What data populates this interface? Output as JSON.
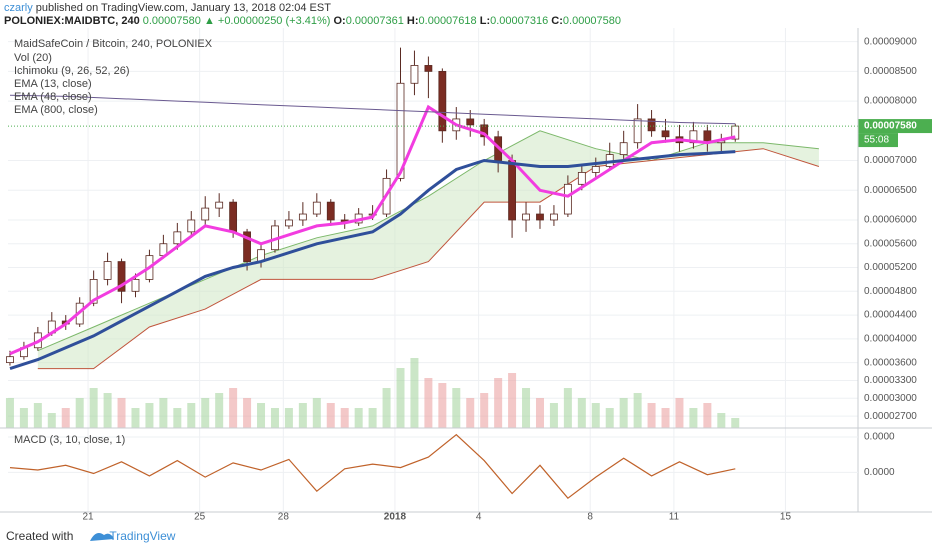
{
  "header": {
    "author": "czarly",
    "published": "published on TradingView.com, January 13, 2018 02:04 EST",
    "symbol": "POLONIEX:MAIDBTC, 240",
    "price": "0.00007580",
    "change": "+0.00000250 (+3.41%)",
    "ohlc": [
      {
        "label": "O:",
        "value": "0.00007361"
      },
      {
        "label": "H:",
        "value": "0.00007618"
      },
      {
        "label": "L:",
        "value": "0.00007316"
      },
      {
        "label": "C:",
        "value": "0.00007580"
      }
    ]
  },
  "footer": {
    "created": "Created with",
    "brand": "TradingView"
  },
  "chart_data": [
    {
      "type": "candlestick",
      "title": "MaidSafeCoin / Bitcoin, 240, POLONIEX",
      "up_color": "#ffffff",
      "down_color": "#7b2c22",
      "outline": "#5a2a22",
      "grid": true,
      "xlim": [
        18.13,
        48.6
      ],
      "ylim": [
        2.5e-05,
        9.23e-05
      ],
      "xticks": [
        21,
        25,
        28,
        {
          "value": 32,
          "label": "2018"
        },
        {
          "value": 35,
          "label": "4"
        },
        {
          "value": 39,
          "label": "8"
        },
        {
          "value": 42,
          "label": "11"
        },
        {
          "value": 46,
          "label": "15"
        }
      ],
      "yticks": [
        {
          "value": 9e-05,
          "label": "0.00009000"
        },
        {
          "value": 8.5e-05,
          "label": "0.00008500"
        },
        {
          "value": 8e-05,
          "label": "0.00008000"
        },
        {
          "value": 7e-05,
          "label": "0.00007000"
        },
        {
          "value": 6.5e-05,
          "label": "0.00006500"
        },
        {
          "value": 6e-05,
          "label": "0.00006000"
        },
        {
          "value": 5.6e-05,
          "label": "0.00005600"
        },
        {
          "value": 5.2e-05,
          "label": "0.00005200"
        },
        {
          "value": 4.8e-05,
          "label": "0.00004800"
        },
        {
          "value": 4.4e-05,
          "label": "0.00004400"
        },
        {
          "value": 4e-05,
          "label": "0.00004000"
        },
        {
          "value": 3.6e-05,
          "label": "0.00003600"
        },
        {
          "value": 3.3e-05,
          "label": "0.00003300"
        },
        {
          "value": 3e-05,
          "label": "0.00003000"
        },
        {
          "value": 2.7e-05,
          "label": "0.00002700"
        }
      ],
      "x": [
        18.2,
        18.7,
        19.2,
        19.7,
        20.2,
        20.7,
        21.2,
        21.7,
        22.2,
        22.7,
        23.2,
        23.7,
        24.2,
        24.7,
        25.2,
        25.7,
        26.2,
        26.7,
        27.2,
        27.7,
        28.2,
        28.7,
        29.2,
        29.7,
        30.2,
        30.7,
        31.2,
        31.7,
        32.2,
        32.7,
        33.2,
        33.7,
        34.2,
        34.7,
        35.2,
        35.7,
        36.2,
        36.7,
        37.2,
        37.7,
        38.2,
        38.7,
        39.2,
        39.7,
        40.2,
        40.7,
        41.2,
        41.7,
        42.2,
        42.7,
        43.2,
        43.7,
        44.2
      ],
      "open": [
        3.6e-05,
        3.7e-05,
        3.85e-05,
        4.1e-05,
        4.3e-05,
        4.25e-05,
        4.6e-05,
        5e-05,
        5.3e-05,
        4.8e-05,
        5e-05,
        5.4e-05,
        5.6e-05,
        5.8e-05,
        6e-05,
        6.2e-05,
        6.3e-05,
        5.8e-05,
        5.3e-05,
        5.5e-05,
        5.9e-05,
        6e-05,
        6.1e-05,
        6.3e-05,
        6e-05,
        5.95e-05,
        6.1e-05,
        6.1e-05,
        6.7e-05,
        8.3e-05,
        8.6e-05,
        8.5e-05,
        7.5e-05,
        7.7e-05,
        7.6e-05,
        7.4e-05,
        7e-05,
        6e-05,
        6.1e-05,
        6e-05,
        6.1e-05,
        6.6e-05,
        6.8e-05,
        6.9e-05,
        7.1e-05,
        7.3e-05,
        7.7e-05,
        7.5e-05,
        7.4e-05,
        7.3e-05,
        7.5e-05,
        7.3e-05,
        7.361e-05
      ],
      "high": [
        3.8e-05,
        3.95e-05,
        4.2e-05,
        4.45e-05,
        4.4e-05,
        4.7e-05,
        5.15e-05,
        5.45e-05,
        5.35e-05,
        5.1e-05,
        5.5e-05,
        5.75e-05,
        5.95e-05,
        6.15e-05,
        6.4e-05,
        6.45e-05,
        6.35e-05,
        5.85e-05,
        5.6e-05,
        6e-05,
        6.15e-05,
        6.3e-05,
        6.45e-05,
        6.35e-05,
        6.1e-05,
        6.2e-05,
        6.25e-05,
        6.85e-05,
        8.9e-05,
        8.85e-05,
        8.75e-05,
        8.55e-05,
        7.9e-05,
        7.85e-05,
        7.7e-05,
        7.5e-05,
        7.1e-05,
        6.3e-05,
        6.25e-05,
        6.25e-05,
        6.75e-05,
        6.95e-05,
        7.05e-05,
        7.3e-05,
        7.5e-05,
        7.95e-05,
        7.85e-05,
        7.7e-05,
        7.6e-05,
        7.65e-05,
        7.6e-05,
        7.45e-05,
        7.618e-05
      ],
      "low": [
        3.55e-05,
        3.65e-05,
        3.8e-05,
        4.05e-05,
        4.15e-05,
        4.2e-05,
        4.55e-05,
        4.9e-05,
        4.6e-05,
        4.7e-05,
        4.95e-05,
        5.35e-05,
        5.5e-05,
        5.7e-05,
        5.9e-05,
        6.05e-05,
        5.7e-05,
        5.15e-05,
        5.2e-05,
        5.45e-05,
        5.85e-05,
        5.9e-05,
        6.05e-05,
        5.9e-05,
        5.85e-05,
        5.9e-05,
        6e-05,
        6.05e-05,
        6.65e-05,
        8.1e-05,
        8.05e-05,
        7.3e-05,
        7.35e-05,
        7.4e-05,
        7.25e-05,
        6.8e-05,
        5.7e-05,
        5.8e-05,
        5.85e-05,
        5.9e-05,
        6.05e-05,
        6.5e-05,
        6.7e-05,
        6.85e-05,
        7e-05,
        7.2e-05,
        7.4e-05,
        7.3e-05,
        7.15e-05,
        7.2e-05,
        7.15e-05,
        7.15e-05,
        7.316e-05
      ],
      "close": [
        3.7e-05,
        3.85e-05,
        4.1e-05,
        4.3e-05,
        4.25e-05,
        4.6e-05,
        5e-05,
        5.3e-05,
        4.8e-05,
        5e-05,
        5.4e-05,
        5.6e-05,
        5.8e-05,
        6e-05,
        6.2e-05,
        6.3e-05,
        5.8e-05,
        5.3e-05,
        5.5e-05,
        5.9e-05,
        6e-05,
        6.1e-05,
        6.3e-05,
        6e-05,
        5.95e-05,
        6.1e-05,
        6.1e-05,
        6.7e-05,
        8.3e-05,
        8.6e-05,
        8.5e-05,
        7.5e-05,
        7.7e-05,
        7.6e-05,
        7.4e-05,
        7e-05,
        6e-05,
        6.1e-05,
        6e-05,
        6.1e-05,
        6.6e-05,
        6.8e-05,
        6.9e-05,
        7.1e-05,
        7.3e-05,
        7.7e-05,
        7.5e-05,
        7.4e-05,
        7.3e-05,
        7.5e-05,
        7.3e-05,
        7.33e-05,
        7.58e-05
      ],
      "volume": {
        "name": "Vol (20)",
        "ylim": [
          0,
          100
        ],
        "up_color": "#a8d5a2",
        "down_color": "#eba3a3",
        "values": [
          30,
          20,
          25,
          15,
          20,
          30,
          40,
          35,
          30,
          20,
          25,
          30,
          20,
          25,
          30,
          35,
          40,
          30,
          25,
          20,
          20,
          25,
          30,
          25,
          20,
          20,
          20,
          40,
          60,
          70,
          50,
          45,
          40,
          30,
          35,
          50,
          55,
          40,
          30,
          25,
          40,
          30,
          25,
          20,
          30,
          35,
          25,
          20,
          30,
          20,
          25,
          15,
          10
        ]
      },
      "ichimoku": {
        "name": "Ichimoku (9, 26, 52, 26)",
        "color_a": "#7cb86a",
        "color_b": "#c0553c",
        "fill": "#cfe8c4",
        "x": [
          19.2,
          21.2,
          23.2,
          25.2,
          27.2,
          29.2,
          31.2,
          33.2,
          35.2,
          37.2,
          39.2,
          41.2,
          43.2,
          45.2,
          47.2
        ],
        "span_a": [
          3.8e-05,
          4.2e-05,
          4.6e-05,
          5e-05,
          5.4e-05,
          5.7e-05,
          5.9e-05,
          6.4e-05,
          7e-05,
          7.5e-05,
          7.2e-05,
          7e-05,
          7.3e-05,
          7.3e-05,
          7.2e-05
        ],
        "span_b": [
          3.5e-05,
          3.5e-05,
          4.2e-05,
          4.5e-05,
          5e-05,
          5e-05,
          5e-05,
          5.3e-05,
          6.3e-05,
          6.3e-05,
          6.9e-05,
          7e-05,
          7.1e-05,
          7.2e-05,
          6.9e-05
        ]
      },
      "overlays": [
        {
          "name": "EMA (13, close)",
          "color": "#f23ce0",
          "width": 3,
          "x": [
            18.2,
            19.2,
            20.2,
            21.2,
            22.2,
            23.2,
            24.2,
            25.2,
            26.2,
            27.2,
            28.2,
            29.2,
            30.2,
            31.2,
            32.2,
            33.2,
            34.2,
            35.2,
            36.2,
            37.2,
            38.2,
            39.2,
            40.2,
            41.2,
            42.2,
            43.2,
            44.2
          ],
          "values": [
            3.75e-05,
            3.95e-05,
            4.25e-05,
            4.65e-05,
            4.9e-05,
            5.2e-05,
            5.55e-05,
            5.9e-05,
            5.8e-05,
            5.6e-05,
            5.75e-05,
            5.9e-05,
            5.95e-05,
            6.05e-05,
            6.8e-05,
            7.9e-05,
            7.6e-05,
            7.45e-05,
            7e-05,
            6.5e-05,
            6.4e-05,
            6.7e-05,
            7e-05,
            7.3e-05,
            7.35e-05,
            7.3e-05,
            7.4e-05
          ]
        },
        {
          "name": "EMA (48, close)",
          "color": "#2f4f9a",
          "width": 3,
          "x": [
            18.2,
            19.2,
            20.2,
            21.2,
            22.2,
            23.2,
            24.2,
            25.2,
            26.2,
            27.2,
            28.2,
            29.2,
            30.2,
            31.2,
            32.2,
            33.2,
            34.2,
            35.2,
            36.2,
            37.2,
            38.2,
            39.2,
            40.2,
            41.2,
            42.2,
            43.2,
            44.2
          ],
          "values": [
            3.5e-05,
            3.65e-05,
            3.85e-05,
            4.05e-05,
            4.3e-05,
            4.55e-05,
            4.8e-05,
            5.05e-05,
            5.2e-05,
            5.3e-05,
            5.45e-05,
            5.6e-05,
            5.7e-05,
            5.8e-05,
            6.1e-05,
            6.5e-05,
            6.85e-05,
            7e-05,
            6.95e-05,
            6.9e-05,
            6.9e-05,
            6.95e-05,
            7e-05,
            7.05e-05,
            7.1e-05,
            7.12e-05,
            7.15e-05
          ]
        },
        {
          "name": "EMA (800, close)",
          "color": "#6a5a90",
          "width": 1,
          "x": [
            18.2,
            19.2,
            20.2,
            21.2,
            22.2,
            23.2,
            24.2,
            25.2,
            26.2,
            27.2,
            28.2,
            29.2,
            30.2,
            31.2,
            32.2,
            33.2,
            34.2,
            35.2,
            36.2,
            37.2,
            38.2,
            39.2,
            40.2,
            41.2,
            42.2,
            43.2,
            44.2
          ],
          "values": [
            8.1e-05,
            8.09e-05,
            8.08e-05,
            8.06e-05,
            8.04e-05,
            8.02e-05,
            8e-05,
            7.98e-05,
            7.96e-05,
            7.94e-05,
            7.92e-05,
            7.9e-05,
            7.88e-05,
            7.86e-05,
            7.84e-05,
            7.82e-05,
            7.8e-05,
            7.78e-05,
            7.76e-05,
            7.74e-05,
            7.72e-05,
            7.7e-05,
            7.68e-05,
            7.66e-05,
            7.64e-05,
            7.63e-05,
            7.62e-05
          ]
        }
      ],
      "last_price": {
        "value": 7.58e-05,
        "label": "0.00007580",
        "countdown": "55:08",
        "color": "#4caf50"
      }
    },
    {
      "type": "line",
      "title": "MACD (3, 10, close, 1)",
      "color": "#c0622a",
      "grid": true,
      "xlim": [
        18.13,
        48.6
      ],
      "ylim": [
        -3.2e-06,
        3.6e-06
      ],
      "yticks": [
        {
          "value": 3e-06,
          "label": "0.0000"
        },
        {
          "value": 0,
          "label": "0.0000"
        }
      ],
      "x": [
        18.2,
        19.2,
        20.2,
        21.2,
        22.2,
        23.2,
        24.2,
        25.2,
        26.2,
        27.2,
        28.2,
        29.2,
        30.2,
        31.2,
        32.2,
        33.2,
        34.2,
        35.2,
        36.2,
        37.2,
        38.2,
        39.2,
        40.2,
        41.2,
        42.2,
        43.2,
        44.2
      ],
      "values": [
        4e-07,
        2e-07,
        6e-07,
        -1e-07,
        9e-07,
        -3e-07,
        1e-06,
        -4e-07,
        8e-07,
        2e-07,
        1.1e-06,
        -1.6e-06,
        3e-07,
        7e-07,
        4e-07,
        1.3e-06,
        3.2e-06,
        1e-06,
        -1.8e-06,
        6e-07,
        -2.2e-06,
        -4e-07,
        1.2e-06,
        -3e-07,
        9e-07,
        -2e-07,
        3e-07
      ]
    }
  ]
}
